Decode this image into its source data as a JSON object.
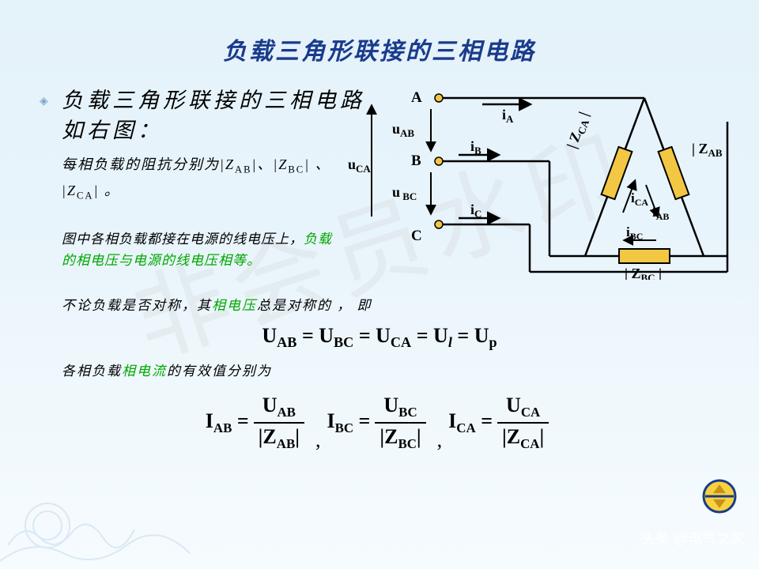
{
  "title": "负载三角形联接的三相电路",
  "heading": "负载三角形联接的三相电路如右图：",
  "body1_pre": "每相负载的阻抗分别为|Z",
  "body1_sub1": "AB",
  "body1_mid": "|、|Z",
  "body1_sub2": "BC",
  "body1_mid2": "| 、 |Z",
  "body1_sub3": "CA",
  "body1_end": "| 。",
  "body2_pre": "图中各相负载都接在电源的线电压上，",
  "body2_green": "负载的相电压与电源的线电压相等。",
  "body3_pre": "不论负载是否对称，其",
  "body3_green": "相电压",
  "body3_post": "总是对称的 ， 即",
  "eq1": {
    "t1": "U",
    "s1": "AB",
    "t2": "U",
    "s2": "BC",
    "t3": "U",
    "s3": "CA",
    "t4": "U",
    "s4": "l",
    "t5": "U",
    "s5": "p",
    "eq": " = "
  },
  "body4_pre": "各相负载",
  "body4_green": "相电流",
  "body4_post": "的有效值分别为",
  "eq2": {
    "items": [
      {
        "lhs": "I",
        "lsub": "AB",
        "num": "U",
        "nsub": "AB",
        "den": "Z",
        "dsub": "AB"
      },
      {
        "lhs": "I",
        "lsub": "BC",
        "num": "U",
        "nsub": "BC",
        "den": "Z",
        "dsub": "BC"
      },
      {
        "lhs": "I",
        "lsub": "CA",
        "num": "U",
        "nsub": "CA",
        "den": "Z",
        "dsub": "CA"
      }
    ]
  },
  "diagram": {
    "labels": {
      "A": "A",
      "B": "B",
      "C": "C",
      "uAB": "u",
      "uAB_sub": "AB",
      "uBC": "u",
      "uBC_sub": " BC",
      "uCA": "u",
      "uCA_sub": "CA",
      "iA": "i",
      "iA_sub": "A",
      "iB": "i",
      "iB_sub": "B",
      "iC": "i",
      "iC_sub": "C",
      "iAB": "i",
      "iAB_sub": "AB",
      "iBC": "i",
      "iBC_sub": "BC",
      "iCA": "i",
      "iCA_sub": "CA",
      "ZAB": "| Z",
      "ZAB_sub": "AB",
      "ZAB_end": " |",
      "ZBC": "| Z",
      "ZBC_sub": "BC",
      "ZBC_end": " |",
      "ZCA": "| Z",
      "ZCA_sub": "CA",
      "ZCA_end": " |"
    },
    "colors": {
      "line": "#000000",
      "box_fill": "#f2c744",
      "box_stroke": "#000000",
      "node": "#c0a030"
    }
  },
  "watermark": "非会员水印",
  "source": "头条 @电气之家",
  "nav_colors": {
    "ring": "#1a3b8c",
    "fill": "#f7d23e",
    "arrow": "#6b4a00"
  }
}
